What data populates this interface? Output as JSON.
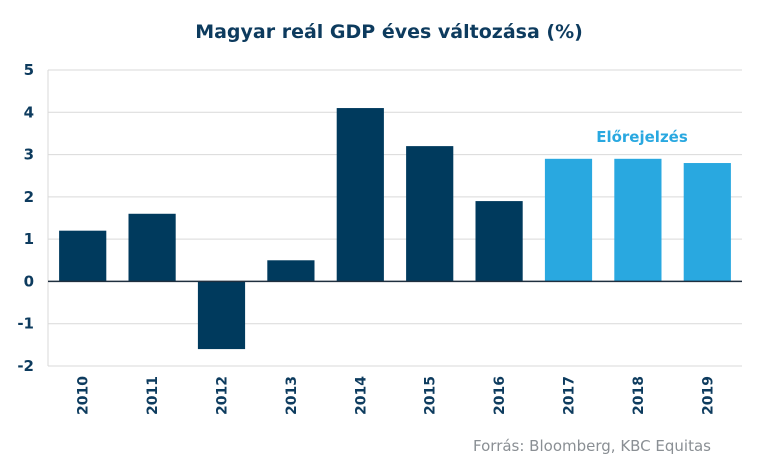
{
  "chart_data": {
    "type": "bar",
    "title": "Magyar reál GDP éves változása (%)",
    "categories": [
      "2010",
      "2011",
      "2012",
      "2013",
      "2014",
      "2015",
      "2016",
      "2017",
      "2018",
      "2019"
    ],
    "values": [
      1.2,
      1.6,
      -1.6,
      0.5,
      4.1,
      3.2,
      1.9,
      2.9,
      2.9,
      2.8
    ],
    "forecast_from_index": 7,
    "ylim": [
      -2,
      5
    ],
    "yticks": [
      "-2",
      "-1",
      "0",
      "1",
      "2",
      "3",
      "4",
      "5"
    ],
    "grid": true,
    "annotation": "Előrejelzés",
    "source": "Forrás: Bloomberg, KBC Equitas",
    "colors": {
      "actual": "#003a5d",
      "forecast": "#29a8e0",
      "grid": "#d9d9d9",
      "axis": "#1f2f3f"
    }
  }
}
